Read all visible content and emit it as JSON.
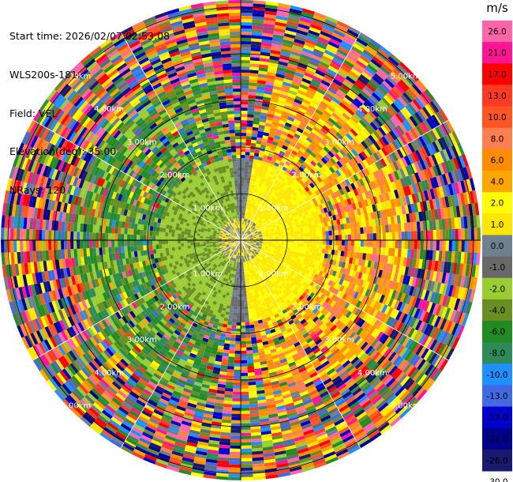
{
  "header": {
    "start_time": "Start time: 2026/02/07 02:53:08",
    "site": "WLS200s-181",
    "field": "Field: VEL",
    "elevation": "Elevation(deg): 35.00",
    "nrays": "NRays: 120"
  },
  "chart_data": {
    "type": "heatmap",
    "projection": "polar-ppi",
    "field": "VEL",
    "units": "m/s",
    "nrays": 120,
    "max_range_km": 5.5,
    "range_rings_km": [
      1.0,
      2.0,
      3.0,
      4.0,
      5.0
    ],
    "range_labels": [
      "1.00km",
      "2.00km",
      "3.00km",
      "4.00km",
      "5.00km"
    ],
    "colorbar": {
      "ticks": [
        "26.0",
        "21.0",
        "17.0",
        "13.0",
        "10.0",
        "8.0",
        "6.0",
        "4.0",
        "2.0",
        "1.0",
        "0.0",
        "-1.0",
        "-2.0",
        "-4.0",
        "-6.0",
        "-8.0",
        "-10.0",
        "-13.0",
        "-17.0",
        "-21.0",
        "-26.0",
        "-30.0"
      ],
      "colors": [
        "#ff66aa",
        "#ff1493",
        "#ff0000",
        "#ff3a22",
        "#ff5522",
        "#ff7f50",
        "#ff8c00",
        "#ffa500",
        "#ffff00",
        "#ffe600",
        "#708090",
        "#696969",
        "#9acd32",
        "#6b8e23",
        "#228b22",
        "#2e8b57",
        "#1e90ff",
        "#4169e1",
        "#0000cd",
        "#00008b",
        "#191970"
      ]
    },
    "pattern": {
      "near_range_km": 1.7,
      "description": "positive velocities (yellow/orange) to the east, negative velocities (green) to the west, near-zero (grey) in the center, noisy outer ranges"
    }
  }
}
